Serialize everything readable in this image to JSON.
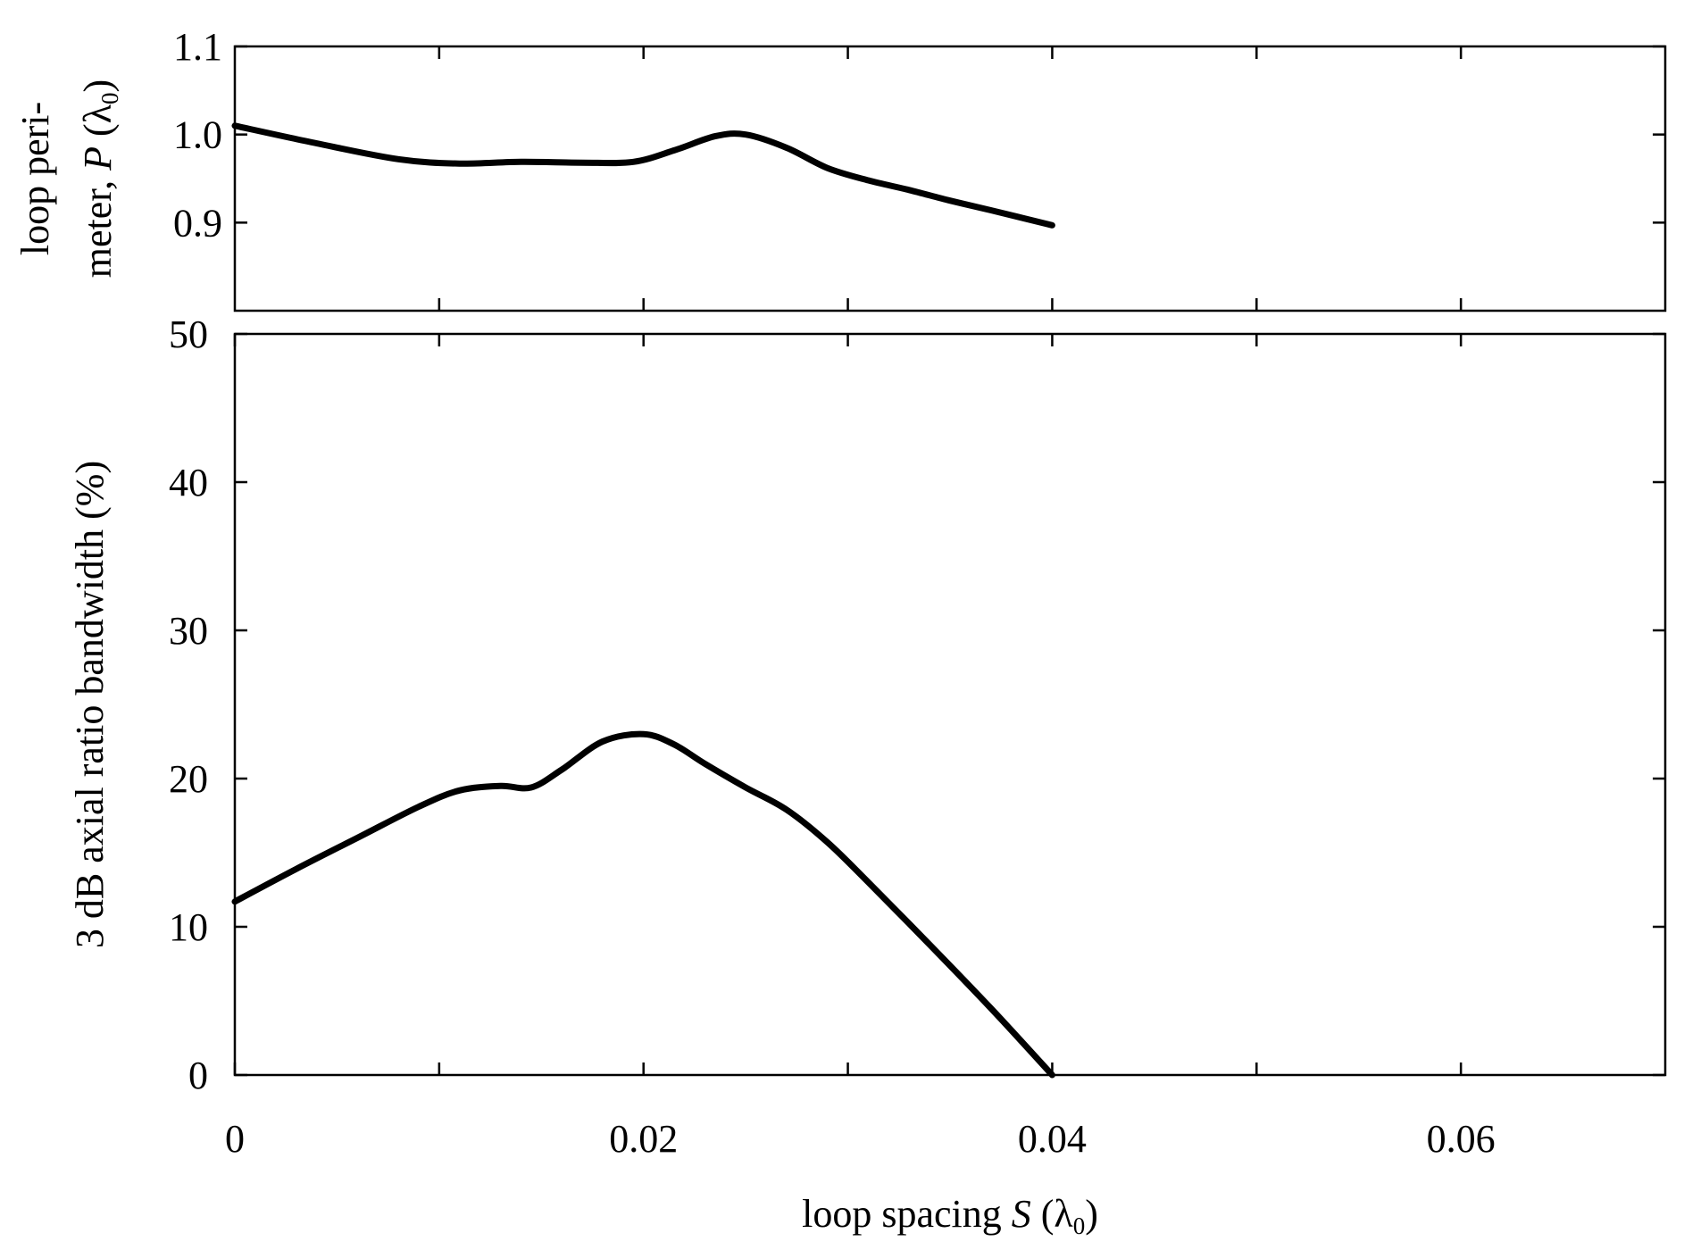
{
  "chart_data": [
    {
      "type": "line",
      "panel": "top",
      "ylabel": {
        "line1": "loop peri-",
        "line2_prefix": "meter, ",
        "line2_var": "P",
        "line2_open": " (λ",
        "line2_sub": "0",
        "line2_close": ")"
      },
      "ylim": [
        0.8,
        1.1
      ],
      "yticks": [
        0.9,
        1.0,
        1.1
      ],
      "ytick_labels": [
        "0.9",
        "1.0",
        "1.1"
      ],
      "xlim": [
        0,
        0.07
      ],
      "xticks": [
        0.01,
        0.02,
        0.03,
        0.04,
        0.05,
        0.06
      ],
      "grid": false,
      "series": [
        {
          "x": [
            0,
            0.004,
            0.008,
            0.011,
            0.014,
            0.017,
            0.0195,
            0.0215,
            0.0235,
            0.025,
            0.027,
            0.029,
            0.031,
            0.033,
            0.035,
            0.037,
            0.04
          ],
          "values": [
            1.01,
            0.99,
            0.972,
            0.967,
            0.969,
            0.968,
            0.969,
            0.982,
            0.998,
            1.0,
            0.985,
            0.962,
            0.948,
            0.937,
            0.925,
            0.914,
            0.897
          ]
        }
      ]
    },
    {
      "type": "line",
      "panel": "bottom",
      "ylabel": "3 dB axial ratio bandwidth  (%)",
      "ylim": [
        0,
        50
      ],
      "yticks": [
        0,
        10,
        20,
        30,
        40,
        50
      ],
      "ytick_labels": [
        "0",
        "10",
        "20",
        "30",
        "40",
        "50"
      ],
      "xlim": [
        0,
        0.07
      ],
      "xticks": [
        0,
        0.01,
        0.02,
        0.03,
        0.04,
        0.05,
        0.06
      ],
      "xtick_labels": [
        "0",
        "0.02",
        "0.04",
        "0.06"
      ],
      "xtick_label_values": [
        0,
        0.02,
        0.04,
        0.06
      ],
      "xlabel": {
        "prefix": "loop spacing ",
        "var": "S",
        "open": " (λ",
        "sub": "0",
        "close": ")"
      },
      "grid": false,
      "series": [
        {
          "x": [
            0,
            0.003,
            0.006,
            0.009,
            0.011,
            0.013,
            0.0145,
            0.016,
            0.018,
            0.02,
            0.0215,
            0.023,
            0.025,
            0.027,
            0.029,
            0.031,
            0.034,
            0.037,
            0.04
          ],
          "values": [
            11.7,
            13.9,
            16.0,
            18.1,
            19.2,
            19.5,
            19.4,
            20.6,
            22.5,
            23.0,
            22.3,
            21.0,
            19.4,
            17.9,
            15.7,
            13.0,
            8.8,
            4.5,
            0.0
          ]
        }
      ]
    }
  ]
}
